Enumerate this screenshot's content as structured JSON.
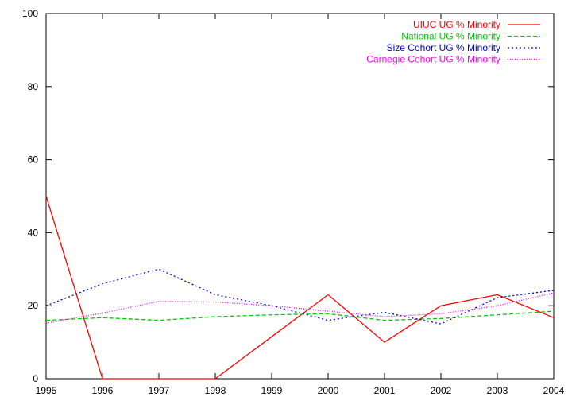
{
  "chart_data": {
    "type": "line",
    "x": [
      1995,
      1996,
      1997,
      1998,
      1999,
      2000,
      2001,
      2002,
      2003,
      2004
    ],
    "xlim": [
      1995,
      2004
    ],
    "ylim": [
      0,
      100
    ],
    "xticks": [
      "1995",
      "1996",
      "1997",
      "1998",
      "1999",
      "2000",
      "2001",
      "2002",
      "2003",
      "2004"
    ],
    "yticks": [
      "0",
      "20",
      "40",
      "60",
      "80",
      "100"
    ],
    "xtick_values": [
      1995,
      1996,
      1997,
      1998,
      1999,
      2000,
      2001,
      2002,
      2003,
      2004
    ],
    "ytick_values": [
      0,
      20,
      40,
      60,
      80,
      100
    ],
    "grid": false,
    "legend_position": "top-right",
    "series": [
      {
        "name": "UIUC UG % Minority",
        "color": "#ff0000",
        "dash": "solid",
        "values": [
          50,
          0,
          0,
          0,
          11.5,
          23,
          10,
          20,
          23,
          16.7
        ]
      },
      {
        "name": "National UG % Minority",
        "color": "#00cc00",
        "dash": "dashed",
        "values": [
          16,
          16.7,
          16,
          17,
          17.5,
          17.8,
          16,
          16.5,
          17.5,
          18.5
        ]
      },
      {
        "name": "Size Cohort UG % Minority",
        "color": "#0000cc",
        "dash": "dotted",
        "values": [
          20,
          26,
          30,
          23,
          20,
          16,
          18.2,
          15,
          22.2,
          24.2
        ]
      },
      {
        "name": "Carnegie Cohort UG % Minority",
        "color": "#ff00ff",
        "dash": "fine-dotted",
        "values": [
          15.2,
          18,
          21.2,
          21,
          20,
          18.5,
          17,
          17.8,
          20,
          23.5
        ]
      }
    ]
  }
}
